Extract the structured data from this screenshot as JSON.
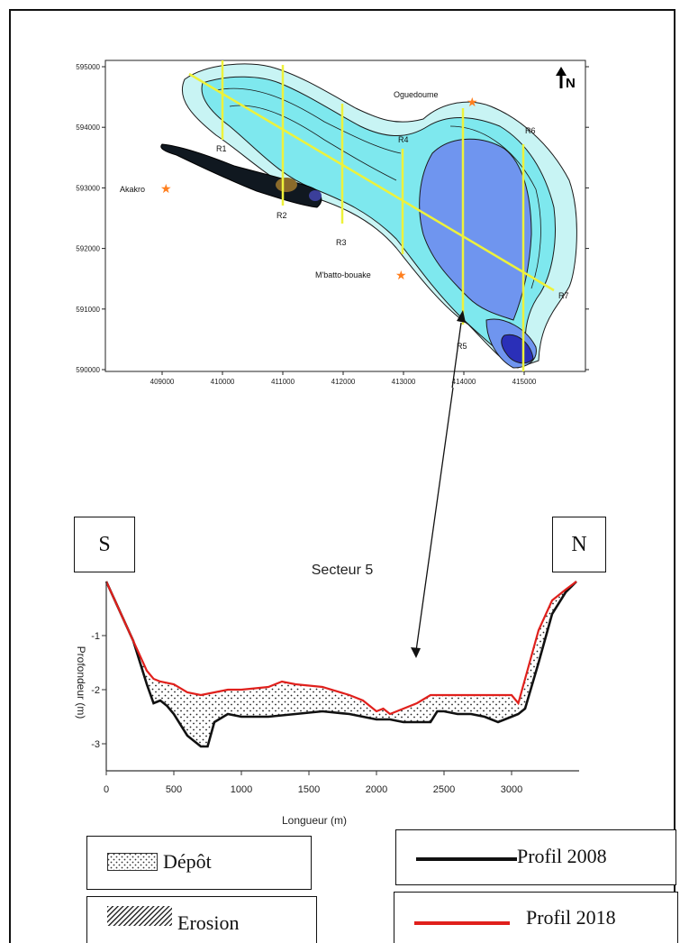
{
  "map": {
    "north_label": "N",
    "y_ticks": [
      "595000",
      "594000",
      "593000",
      "592000",
      "591000",
      "590000"
    ],
    "x_ticks": [
      "409000",
      "410000",
      "411000",
      "412000",
      "413000",
      "414000",
      "415000"
    ],
    "places": [
      "Oguedoume",
      "Akakro",
      "M'batto-bouake"
    ],
    "sections": [
      "R1",
      "R2",
      "R3",
      "R4",
      "R5",
      "R6",
      "R7"
    ],
    "colors": {
      "deep": "#3d5fd6",
      "mid": "#6f95ef",
      "shallow": "#7ee8ee",
      "lightest": "#c8f4f4",
      "profile_line": "#eef23a",
      "place_star": "#ff7f1e"
    }
  },
  "profile": {
    "direction_left": "S",
    "direction_right": "N"
  },
  "chart_data": {
    "type": "area",
    "title": "Secteur 5",
    "xlabel": "Longueur (m)",
    "ylabel": "Profondeur (m)",
    "xlim": [
      0,
      3500
    ],
    "ylim": [
      -3.5,
      0
    ],
    "x_ticks": [
      0,
      500,
      1000,
      1500,
      2000,
      2500,
      3000
    ],
    "y_ticks": [
      -1,
      -2,
      -3
    ],
    "grid": false,
    "series": [
      {
        "name": "Profil 2008",
        "color": "#111111",
        "x": [
          0,
          200,
          300,
          350,
          400,
          450,
          500,
          600,
          700,
          750,
          800,
          900,
          1000,
          1200,
          1400,
          1600,
          1800,
          1900,
          2000,
          2100,
          2200,
          2300,
          2400,
          2450,
          2500,
          2600,
          2700,
          2800,
          2900,
          3000,
          3050,
          3100,
          3200,
          3300,
          3400,
          3480
        ],
        "y": [
          0,
          -1.1,
          -1.9,
          -2.25,
          -2.2,
          -2.3,
          -2.45,
          -2.85,
          -3.05,
          -3.05,
          -2.6,
          -2.45,
          -2.5,
          -2.5,
          -2.45,
          -2.4,
          -2.45,
          -2.5,
          -2.55,
          -2.55,
          -2.6,
          -2.6,
          -2.6,
          -2.4,
          -2.4,
          -2.45,
          -2.45,
          -2.5,
          -2.6,
          -2.5,
          -2.45,
          -2.35,
          -1.5,
          -0.6,
          -0.2,
          0
        ]
      },
      {
        "name": "Profil 2018",
        "color": "#e0201c",
        "x": [
          0,
          200,
          300,
          350,
          400,
          500,
          600,
          700,
          800,
          900,
          1000,
          1200,
          1300,
          1400,
          1600,
          1800,
          1900,
          2000,
          2050,
          2100,
          2200,
          2300,
          2400,
          2500,
          2600,
          2800,
          3000,
          3050,
          3100,
          3200,
          3300,
          3400,
          3480
        ],
        "y": [
          0,
          -1.1,
          -1.65,
          -1.8,
          -1.85,
          -1.9,
          -2.05,
          -2.1,
          -2.05,
          -2.0,
          -2.0,
          -1.95,
          -1.85,
          -1.9,
          -1.95,
          -2.1,
          -2.2,
          -2.4,
          -2.35,
          -2.45,
          -2.35,
          -2.25,
          -2.1,
          -2.1,
          -2.1,
          -2.1,
          -2.1,
          -2.25,
          -1.8,
          -0.9,
          -0.35,
          -0.15,
          0
        ]
      }
    ]
  },
  "legend": {
    "depot": "Dépôt",
    "erosion": "Erosion",
    "profil_2008": "Profil 2008",
    "profil_2018": "Profil 2018"
  }
}
